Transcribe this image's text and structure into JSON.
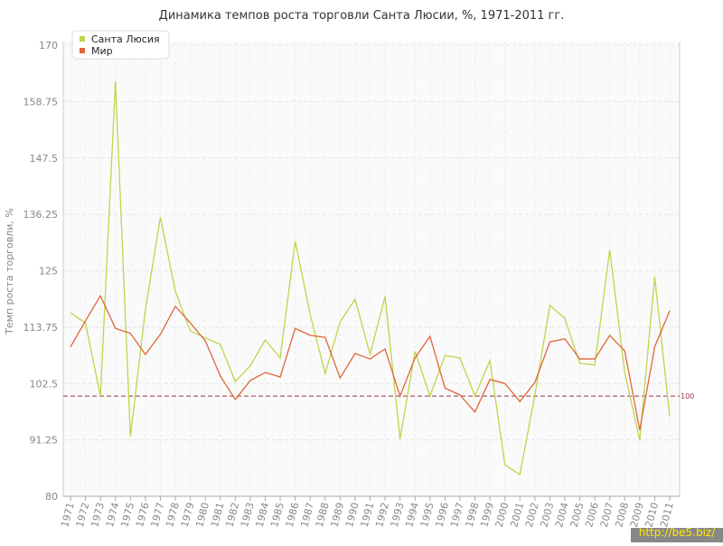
{
  "chart_data": {
    "type": "line",
    "title": "Динамика темпов роста торговли Санта Люсии, %, 1971-2011 гг.",
    "y_label": "Темп роста торговли, %",
    "categories": [
      "1971",
      "1972",
      "1973",
      "1974",
      "1975",
      "1976",
      "1977",
      "1978",
      "1979",
      "1980",
      "1981",
      "1982",
      "1983",
      "1984",
      "1985",
      "1986",
      "1987",
      "1988",
      "1989",
      "1990",
      "1991",
      "1992",
      "1993",
      "1994",
      "1995",
      "1996",
      "1997",
      "1998",
      "1999",
      "2000",
      "2001",
      "2002",
      "2003",
      "2004",
      "2005",
      "2006",
      "2007",
      "2008",
      "2009",
      "2010",
      "2011"
    ],
    "series": [
      {
        "name": "Санта Люсия",
        "color": "#bcd64a",
        "values": [
          116.6,
          114.6,
          100,
          162.8,
          91.9,
          117.2,
          135.7,
          120.9,
          113,
          111.6,
          110.3,
          102.9,
          106,
          111.2,
          107.6,
          130.9,
          116.3,
          104.5,
          114.8,
          119.3,
          108.3,
          119.9,
          91.4,
          108.9,
          100,
          108.1,
          107.6,
          100,
          107.1,
          86.3,
          84.3,
          100.2,
          118.1,
          115.5,
          106.5,
          106.2,
          129.2,
          104.7,
          91.2,
          123.8,
          96
        ]
      },
      {
        "name": "Мир",
        "color": "#e0663a",
        "values": [
          109.8,
          115,
          120,
          113.5,
          112.5,
          108.3,
          112.3,
          117.9,
          114.6,
          111,
          104,
          99.3,
          103.1,
          104.7,
          103.8,
          113.5,
          112.1,
          111.7,
          103.6,
          108.5,
          107.4,
          109.4,
          100,
          107.6,
          111.9,
          101.6,
          100.2,
          96.8,
          103.3,
          102.5,
          98.9,
          102.7,
          110.8,
          111.4,
          107.4,
          107.4,
          112.1,
          109,
          93.2,
          109.8,
          117
        ]
      }
    ],
    "reference_line": 100,
    "ylim": [
      80,
      170
    ],
    "yticks": [
      80,
      91.25,
      102.5,
      113.75,
      125,
      136.25,
      147.5,
      158.75,
      170
    ],
    "grid": true,
    "legend": "top-left",
    "watermark": "http://be5.biz/"
  }
}
